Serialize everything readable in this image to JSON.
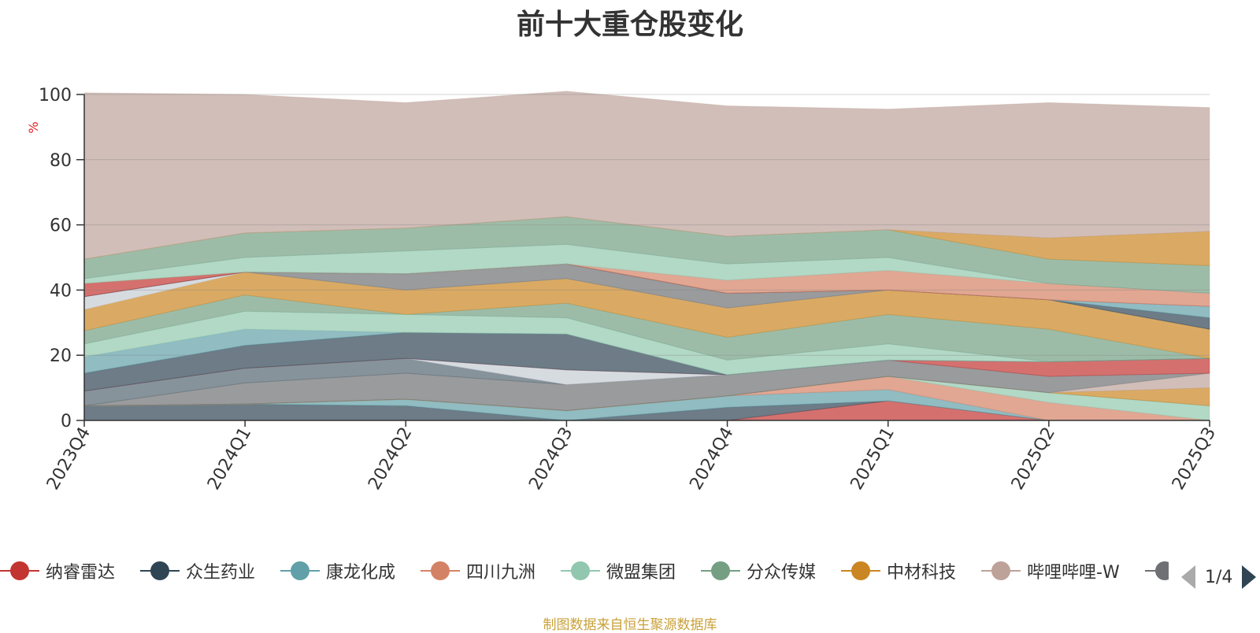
{
  "chart_data": {
    "type": "area",
    "title": "前十大重仓股变化",
    "ylabel": "%",
    "ylim": [
      0,
      100
    ],
    "yticks": [
      0,
      20,
      40,
      60,
      80,
      100
    ],
    "categories": [
      "2023Q4",
      "2024Q1",
      "2024Q2",
      "2024Q3",
      "2024Q4",
      "2025Q1",
      "2025Q2",
      "2025Q3"
    ],
    "grid": true,
    "legend_position": "bottom",
    "legend_page": "1/4",
    "series": [
      {
        "name": "纳睿雷达",
        "color": "#c23531",
        "values": [
          0,
          0,
          0,
          0,
          0,
          6,
          0,
          0
        ]
      },
      {
        "name": "众生药业",
        "color": "#2f4554",
        "values": [
          4.5,
          5,
          4.5,
          0,
          4,
          0,
          0,
          0
        ]
      },
      {
        "name": "康龙化成",
        "color": "#61a0a8",
        "values": [
          0,
          0,
          2,
          3,
          3.5,
          3.5,
          0,
          0
        ]
      },
      {
        "name": "四川九洲",
        "color": "#d48265",
        "values": [
          0,
          0,
          0,
          0,
          0,
          4,
          5.5,
          0
        ]
      },
      {
        "name": "微盟集团",
        "color": "#91c7ae",
        "values": [
          0,
          0,
          0,
          0,
          0,
          0,
          3,
          4.5
        ]
      },
      {
        "name": "分众传媒",
        "color": "#749f83",
        "values": [
          0,
          0,
          0,
          0,
          0,
          0,
          0,
          0
        ]
      },
      {
        "name": "中材科技",
        "color": "#ca8622",
        "values": [
          0,
          0,
          0,
          0,
          0,
          0,
          0,
          5.5
        ]
      },
      {
        "name": "哔哩哔哩-W",
        "color": "#bda29a",
        "values": [
          0,
          0,
          0,
          0,
          0,
          0,
          0,
          4.5
        ]
      },
      {
        "name": "",
        "color": "#6e7074",
        "values": [
          0,
          6.5,
          8,
          8,
          6.5,
          5,
          5,
          0
        ]
      },
      {
        "name": "",
        "color": "#546570",
        "values": [
          4.5,
          4.5,
          4.5,
          0,
          0,
          0,
          0,
          0
        ]
      },
      {
        "name": "",
        "color": "#c4ccd3",
        "values": [
          0,
          0,
          0,
          4.5,
          0,
          0,
          0,
          0
        ]
      },
      {
        "name": "",
        "color": "#c23531",
        "values": [
          0,
          0,
          0,
          0,
          0,
          0,
          4.5,
          4.5
        ]
      },
      {
        "name": "",
        "color": "#2f4554",
        "values": [
          5.5,
          7,
          8,
          11,
          0,
          0,
          0,
          0
        ]
      },
      {
        "name": "",
        "color": "#61a0a8",
        "values": [
          5,
          5,
          0,
          0,
          0,
          0,
          0,
          0
        ]
      },
      {
        "name": "",
        "color": "#91c7ae",
        "values": [
          4,
          5.5,
          5.5,
          5,
          4.5,
          5,
          0,
          0
        ]
      },
      {
        "name": "",
        "color": "#749f83",
        "values": [
          4,
          5,
          0,
          4.5,
          7,
          9,
          10,
          0
        ]
      },
      {
        "name": "",
        "color": "#ca8622",
        "values": [
          6.5,
          7,
          7.5,
          7.5,
          9,
          7.5,
          9,
          9
        ]
      },
      {
        "name": "",
        "color": "#c4ccd3",
        "values": [
          4,
          0,
          0,
          0,
          0,
          0,
          0,
          0
        ]
      },
      {
        "name": "",
        "color": "#6e7074",
        "values": [
          0,
          0,
          5,
          4.5,
          4.5,
          0,
          0,
          0
        ]
      },
      {
        "name": "",
        "color": "#2f4554",
        "values": [
          0,
          0,
          0,
          0,
          0,
          0,
          0,
          3.5
        ]
      },
      {
        "name": "",
        "color": "#61a0a8",
        "values": [
          0,
          0,
          0,
          0,
          0,
          0,
          0,
          3.5
        ]
      },
      {
        "name": "",
        "color": "#c23531",
        "values": [
          4,
          0,
          0,
          0,
          0,
          0,
          0,
          0
        ]
      },
      {
        "name": "",
        "color": "#d48265",
        "values": [
          0,
          0,
          0,
          0,
          4,
          6,
          5,
          4
        ]
      },
      {
        "name": "",
        "color": "#91c7ae",
        "values": [
          1.5,
          4.5,
          7,
          6,
          5,
          4,
          0,
          0
        ]
      },
      {
        "name": "",
        "color": "#749f83",
        "values": [
          6,
          7.5,
          7,
          8.5,
          8.5,
          8.5,
          7.5,
          8.5
        ]
      },
      {
        "name": "",
        "color": "#ca8622",
        "values": [
          0,
          0,
          0,
          0,
          0,
          0,
          6.5,
          10.5
        ]
      },
      {
        "name": "",
        "color": "#bda29a",
        "values": [
          51,
          42.5,
          38.5,
          38.5,
          40,
          37,
          41.5,
          38
        ]
      }
    ]
  },
  "legend": {
    "items": [
      {
        "label": "纳睿雷达",
        "color": "#c23531"
      },
      {
        "label": "众生药业",
        "color": "#2f4554"
      },
      {
        "label": "康龙化成",
        "color": "#61a0a8"
      },
      {
        "label": "四川九洲",
        "color": "#d48265"
      },
      {
        "label": "微盟集团",
        "color": "#91c7ae"
      },
      {
        "label": "分众传媒",
        "color": "#749f83"
      },
      {
        "label": "中材科技",
        "color": "#ca8622"
      },
      {
        "label": "哔哩哔哩-W",
        "color": "#bda29a"
      }
    ],
    "partial_item_color": "#6e7074",
    "page_text": "1/4"
  },
  "source_note": "制图数据来自恒生聚源数据库"
}
